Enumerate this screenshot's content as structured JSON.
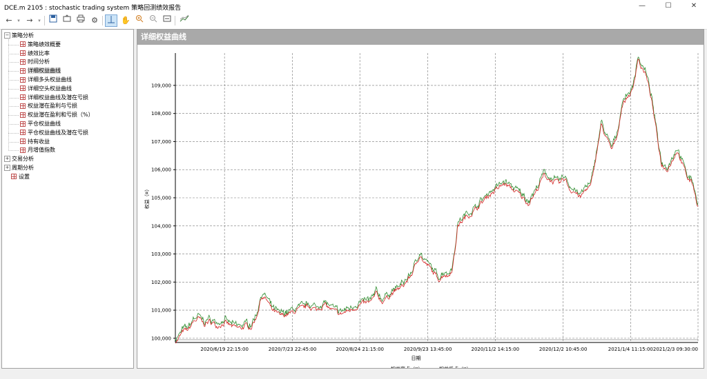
{
  "window": {
    "title": "DCE.m 2105 : stochastic trading system 策略回测绩效报告"
  },
  "toolbar": {
    "back_icon": "arrow-left-icon",
    "forward_icon": "arrow-right-icon",
    "save_icon": "save-icon",
    "print_icon": "printer-icon",
    "settings_icon": "gear-icon",
    "zoom_in_icon": "zoom-in-icon",
    "zoom_out_icon": "zoom-out-icon"
  },
  "tree": {
    "groups": [
      {
        "label": "策略分析",
        "expanded": true,
        "items": [
          "策略绩效概要",
          "绩效比率",
          "时间分析",
          "详细权益曲线",
          "详细多头权益曲线",
          "详细空头权益曲线",
          "详细权益曲线及潜在亏损",
          "权益潜在盈利与亏损",
          "权益潜在盈利和亏损（%）",
          "平仓权益曲线",
          "平仓权益曲线及潜在亏损",
          "持有收益",
          "月增值指数"
        ]
      },
      {
        "label": "交易分析",
        "expanded": false,
        "items": []
      },
      {
        "label": "周期分析",
        "expanded": false,
        "items": []
      }
    ],
    "settings_label": "设置",
    "selected": "详细权益曲线"
  },
  "panel": {
    "title": "详细权益曲线"
  },
  "chart_data": {
    "type": "line",
    "xlabel": "日期",
    "ylabel": "权益（¤）",
    "ylim": [
      99850,
      110150
    ],
    "y_ticks": [
      100000,
      101000,
      102000,
      103000,
      104000,
      105000,
      106000,
      107000,
      108000,
      109000
    ],
    "y_tick_labels": [
      "100,000",
      "101,000",
      "102,000",
      "103,000",
      "104,000",
      "105,000",
      "106,000",
      "107,000",
      "108,000",
      "109,000"
    ],
    "x_ticks": [
      {
        "label": "2020/6/19 22:15:00",
        "t": 0.094
      },
      {
        "label": "2020/7/23 22:45:00",
        "t": 0.224
      },
      {
        "label": "2020/8/24 21:15:00",
        "t": 0.353
      },
      {
        "label": "2020/9/23 13:45:00",
        "t": 0.483
      },
      {
        "label": "2020/11/2 14:15:00",
        "t": 0.612
      },
      {
        "label": "2020/12/2 10:45:00",
        "t": 0.742
      },
      {
        "label": "2021/1/4 11:15:00",
        "t": 0.871
      },
      {
        "label": "2021/2/3 09:30:00",
        "t": 1.0
      }
    ],
    "grid": true,
    "legend_position": "bottom-center",
    "series": [
      {
        "name": "权益高点（¤）",
        "color": "#2e8b2e"
      },
      {
        "name": "权益低点（¤）",
        "color": "#d42020"
      }
    ],
    "anchors": [
      [
        0.0,
        99900
      ],
      [
        0.005,
        99950
      ],
      [
        0.015,
        100250
      ],
      [
        0.025,
        100300
      ],
      [
        0.035,
        100600
      ],
      [
        0.045,
        100700
      ],
      [
        0.055,
        100500
      ],
      [
        0.065,
        100600
      ],
      [
        0.08,
        100450
      ],
      [
        0.095,
        100550
      ],
      [
        0.11,
        100400
      ],
      [
        0.125,
        100350
      ],
      [
        0.135,
        100450
      ],
      [
        0.145,
        100400
      ],
      [
        0.155,
        100750
      ],
      [
        0.165,
        101500
      ],
      [
        0.175,
        101350
      ],
      [
        0.185,
        101000
      ],
      [
        0.2,
        100800
      ],
      [
        0.215,
        100850
      ],
      [
        0.235,
        101000
      ],
      [
        0.255,
        101150
      ],
      [
        0.27,
        101000
      ],
      [
        0.285,
        101200
      ],
      [
        0.3,
        101000
      ],
      [
        0.315,
        100850
      ],
      [
        0.335,
        101000
      ],
      [
        0.355,
        101200
      ],
      [
        0.375,
        101300
      ],
      [
        0.385,
        101600
      ],
      [
        0.395,
        101300
      ],
      [
        0.415,
        101600
      ],
      [
        0.435,
        101850
      ],
      [
        0.45,
        102200
      ],
      [
        0.46,
        102600
      ],
      [
        0.468,
        103000
      ],
      [
        0.475,
        102700
      ],
      [
        0.485,
        102550
      ],
      [
        0.495,
        102300
      ],
      [
        0.505,
        102100
      ],
      [
        0.515,
        102300
      ],
      [
        0.522,
        102200
      ],
      [
        0.53,
        102500
      ],
      [
        0.535,
        103100
      ],
      [
        0.54,
        104000
      ],
      [
        0.555,
        104300
      ],
      [
        0.57,
        104500
      ],
      [
        0.585,
        104800
      ],
      [
        0.6,
        105100
      ],
      [
        0.615,
        105300
      ],
      [
        0.63,
        105500
      ],
      [
        0.645,
        105300
      ],
      [
        0.66,
        105100
      ],
      [
        0.675,
        104800
      ],
      [
        0.69,
        105200
      ],
      [
        0.705,
        105800
      ],
      [
        0.72,
        105600
      ],
      [
        0.735,
        105500
      ],
      [
        0.745,
        105700
      ],
      [
        0.755,
        105300
      ],
      [
        0.765,
        105200
      ],
      [
        0.775,
        105000
      ],
      [
        0.785,
        105300
      ],
      [
        0.795,
        105400
      ],
      [
        0.805,
        106500
      ],
      [
        0.815,
        107600
      ],
      [
        0.825,
        107100
      ],
      [
        0.835,
        106700
      ],
      [
        0.845,
        107200
      ],
      [
        0.855,
        108300
      ],
      [
        0.865,
        108600
      ],
      [
        0.875,
        108800
      ],
      [
        0.885,
        110000
      ],
      [
        0.892,
        109600
      ],
      [
        0.9,
        109400
      ],
      [
        0.91,
        108600
      ],
      [
        0.92,
        107400
      ],
      [
        0.93,
        106200
      ],
      [
        0.94,
        106000
      ],
      [
        0.95,
        106300
      ],
      [
        0.96,
        106700
      ],
      [
        0.97,
        106200
      ],
      [
        0.98,
        105700
      ],
      [
        0.99,
        105500
      ],
      [
        0.996,
        105000
      ],
      [
        1.0,
        104700
      ]
    ]
  }
}
